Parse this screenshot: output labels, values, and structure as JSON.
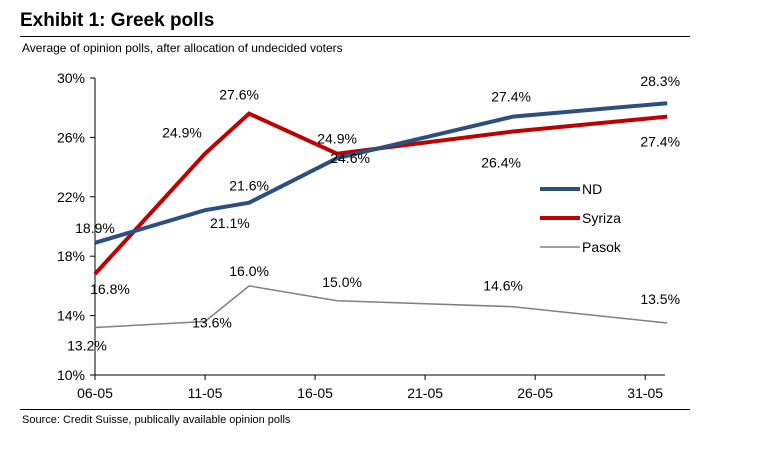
{
  "title": "Exhibit 1: Greek polls",
  "subtitle": "Average of opinion polls, after allocation of undecided voters",
  "source": "Source: Credit Suisse, publically available opinion polls",
  "chart_data": {
    "type": "line",
    "title": "Exhibit 1: Greek polls",
    "xlabel": "",
    "ylabel": "",
    "x_ticks": [
      "06-05",
      "11-05",
      "16-05",
      "21-05",
      "26-05",
      "31-05"
    ],
    "x_tick_days": [
      6,
      11,
      16,
      21,
      26,
      31
    ],
    "xlim": [
      6,
      31.9
    ],
    "y_ticks": [
      "10%",
      "14%",
      "18%",
      "22%",
      "26%",
      "30%"
    ],
    "y_tick_values": [
      10,
      14,
      18,
      22,
      26,
      30
    ],
    "ylim": [
      10,
      30
    ],
    "legend": "right",
    "grid": false,
    "series": [
      {
        "name": "ND",
        "color": "#2d4f7f",
        "x": [
          6,
          11,
          13,
          17,
          25,
          32
        ],
        "values": [
          18.9,
          21.1,
          21.6,
          24.6,
          27.4,
          28.3
        ],
        "labels": [
          "18.9%",
          "21.1%",
          "21.6%",
          "24.6%",
          "27.4%",
          "28.3%"
        ]
      },
      {
        "name": "Syriza",
        "color": "#c00000",
        "x": [
          6,
          11,
          13,
          17,
          25,
          32
        ],
        "values": [
          16.8,
          24.9,
          27.6,
          24.9,
          26.4,
          27.4
        ],
        "labels": [
          "16.8%",
          "24.9%",
          "27.6%",
          "24.9%",
          "26.4%",
          "27.4%"
        ]
      },
      {
        "name": "Pasok",
        "color": "#808080",
        "x": [
          6,
          11,
          13,
          17,
          25,
          32
        ],
        "values": [
          13.2,
          13.6,
          16.0,
          15.0,
          14.6,
          13.5
        ],
        "labels": [
          "13.2%",
          "13.6%",
          "16.0%",
          "15.0%",
          "14.6%",
          "13.5%"
        ]
      }
    ]
  }
}
